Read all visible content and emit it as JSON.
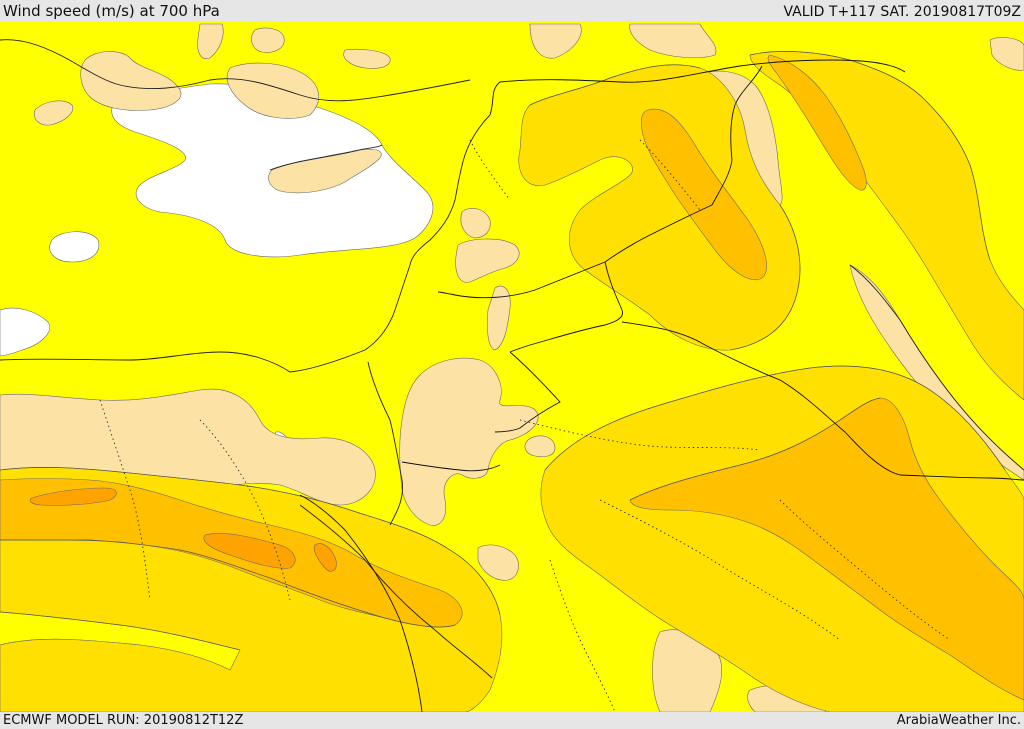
{
  "header": {
    "title": "Wind speed (m/s) at 700 hPa",
    "valid_time": "VALID T+117 SAT. 20190817T09Z"
  },
  "footer": {
    "model_run": "ECMWF MODEL RUN: 20190812T12Z",
    "credit": "ArabiaWeather Inc."
  },
  "map": {
    "fill_colors": {
      "background": "#ffff00",
      "calm": "#ffffff",
      "light": "#fde2a6",
      "moderate": "#ffe000",
      "fresh": "#ffc000",
      "strong": "#ffa300"
    },
    "line_colors": {
      "coastline": "#222222",
      "border": "#111111",
      "contour": "#555555"
    }
  }
}
